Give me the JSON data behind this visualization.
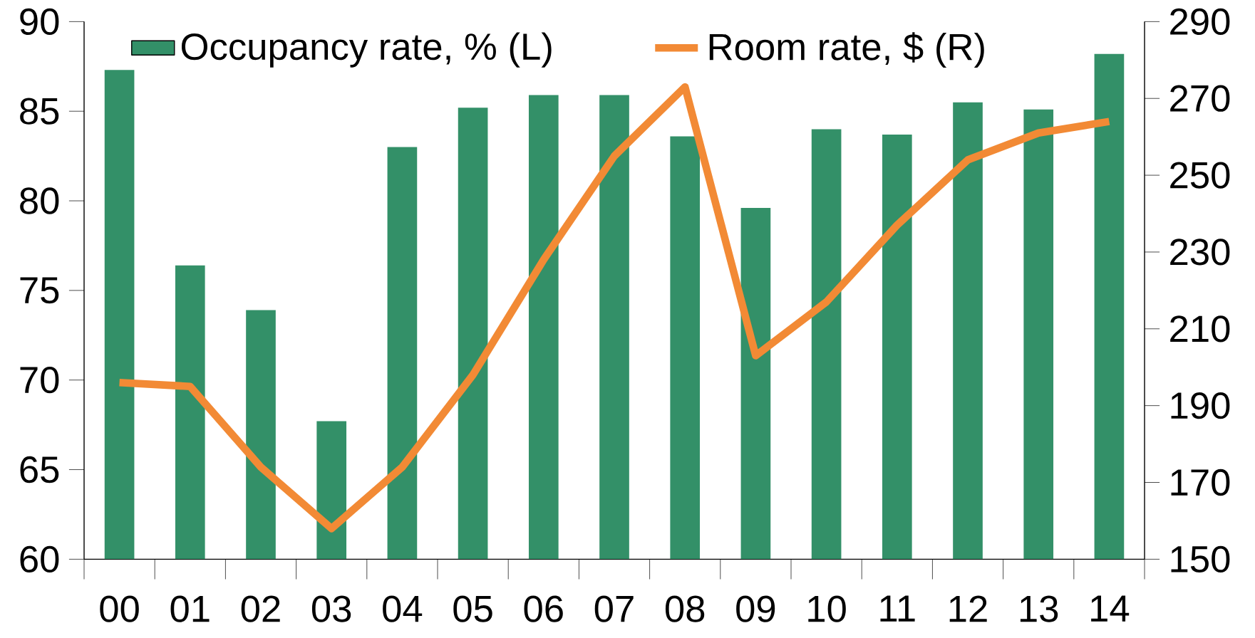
{
  "chart_data": {
    "type": "bar",
    "categories": [
      "00",
      "01",
      "02",
      "03",
      "04",
      "05",
      "06",
      "07",
      "08",
      "09",
      "10",
      "11",
      "12",
      "13",
      "14"
    ],
    "series": [
      {
        "name": "Occupancy rate, % (L)",
        "type": "bar",
        "color": "#339068",
        "values": [
          87.3,
          76.4,
          73.9,
          67.7,
          83.0,
          85.2,
          85.9,
          85.9,
          83.6,
          79.6,
          84.0,
          83.7,
          85.5,
          85.1,
          88.2
        ]
      },
      {
        "name": "Room rate, $ (R)",
        "type": "line",
        "axis": "y2",
        "color": "#f28a35",
        "values": [
          196,
          195,
          174,
          158,
          174,
          198,
          228,
          255,
          273,
          203,
          217,
          237,
          254,
          261,
          264
        ]
      }
    ],
    "ylim": [
      60,
      90
    ],
    "yticks": [
      60,
      65,
      70,
      75,
      80,
      85,
      90
    ],
    "y2lim": [
      150,
      290
    ],
    "y2ticks": [
      150,
      170,
      190,
      210,
      230,
      250,
      270,
      290
    ],
    "legend": "top",
    "grid": false
  }
}
